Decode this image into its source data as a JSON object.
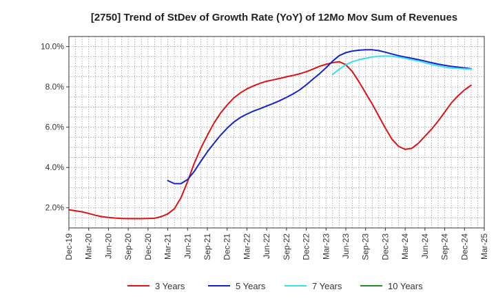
{
  "chart_data": {
    "type": "line",
    "title": "[2750]  Trend of StDev of Growth Rate (YoY) of 12Mo Mov Sum of Revenues",
    "xlabel": "",
    "ylabel": "",
    "x_tick_labels": [
      "Dec-19",
      "Mar-20",
      "Jun-20",
      "Sep-20",
      "Dec-20",
      "Mar-21",
      "Jun-21",
      "Sep-21",
      "Dec-21",
      "Mar-22",
      "Jun-22",
      "Sep-22",
      "Dec-22",
      "Mar-23",
      "Jun-23",
      "Sep-23",
      "Dec-23",
      "Mar-24",
      "Jun-24",
      "Sep-24",
      "Dec-24",
      "Mar-25"
    ],
    "y_ticks": [
      2.0,
      4.0,
      6.0,
      8.0,
      10.0
    ],
    "y_tick_labels": [
      "2.0%",
      "4.0%",
      "6.0%",
      "8.0%",
      "10.0%"
    ],
    "ylim": [
      1.0,
      10.5
    ],
    "grid": true,
    "legend_position": "bottom",
    "series": [
      {
        "name": "3 Years",
        "color": "#dd1111",
        "start_index": 0,
        "values": [
          1.9,
          1.85,
          1.8,
          1.72,
          1.63,
          1.56,
          1.52,
          1.49,
          1.47,
          1.46,
          1.46,
          1.46,
          1.47,
          1.48,
          1.56,
          1.7,
          1.95,
          2.5,
          3.3,
          4.2,
          4.95,
          5.6,
          6.2,
          6.7,
          7.1,
          7.45,
          7.7,
          7.9,
          8.05,
          8.18,
          8.28,
          8.35,
          8.42,
          8.5,
          8.57,
          8.65,
          8.75,
          8.88,
          9.02,
          9.12,
          9.2,
          9.25,
          9.1,
          8.75,
          8.25,
          7.7,
          7.15,
          6.55,
          5.95,
          5.4,
          5.05,
          4.9,
          4.95,
          5.2,
          5.55,
          5.9,
          6.3,
          6.75,
          7.2,
          7.55,
          7.85,
          8.08
        ]
      },
      {
        "name": "5 Years",
        "color": "#1122cc",
        "start_index": 15,
        "values": [
          3.35,
          3.2,
          3.2,
          3.4,
          3.8,
          4.3,
          4.78,
          5.2,
          5.6,
          5.95,
          6.25,
          6.48,
          6.65,
          6.8,
          6.92,
          7.05,
          7.18,
          7.32,
          7.48,
          7.65,
          7.85,
          8.1,
          8.38,
          8.65,
          8.95,
          9.28,
          9.55,
          9.7,
          9.78,
          9.82,
          9.84,
          9.84,
          9.8,
          9.72,
          9.63,
          9.55,
          9.48,
          9.42,
          9.35,
          9.28,
          9.2,
          9.13,
          9.07,
          9.02,
          8.98,
          8.94,
          8.9
        ]
      },
      {
        "name": "7 Years",
        "color": "#33e0f0",
        "start_index": 40,
        "values": [
          8.62,
          8.88,
          9.1,
          9.25,
          9.35,
          9.42,
          9.48,
          9.52,
          9.53,
          9.52,
          9.48,
          9.42,
          9.35,
          9.28,
          9.2,
          9.12,
          9.05,
          8.98,
          8.94,
          8.92,
          8.9,
          8.88
        ]
      },
      {
        "name": "10 Years",
        "color": "#228822",
        "start_index": 0,
        "values": []
      }
    ]
  }
}
